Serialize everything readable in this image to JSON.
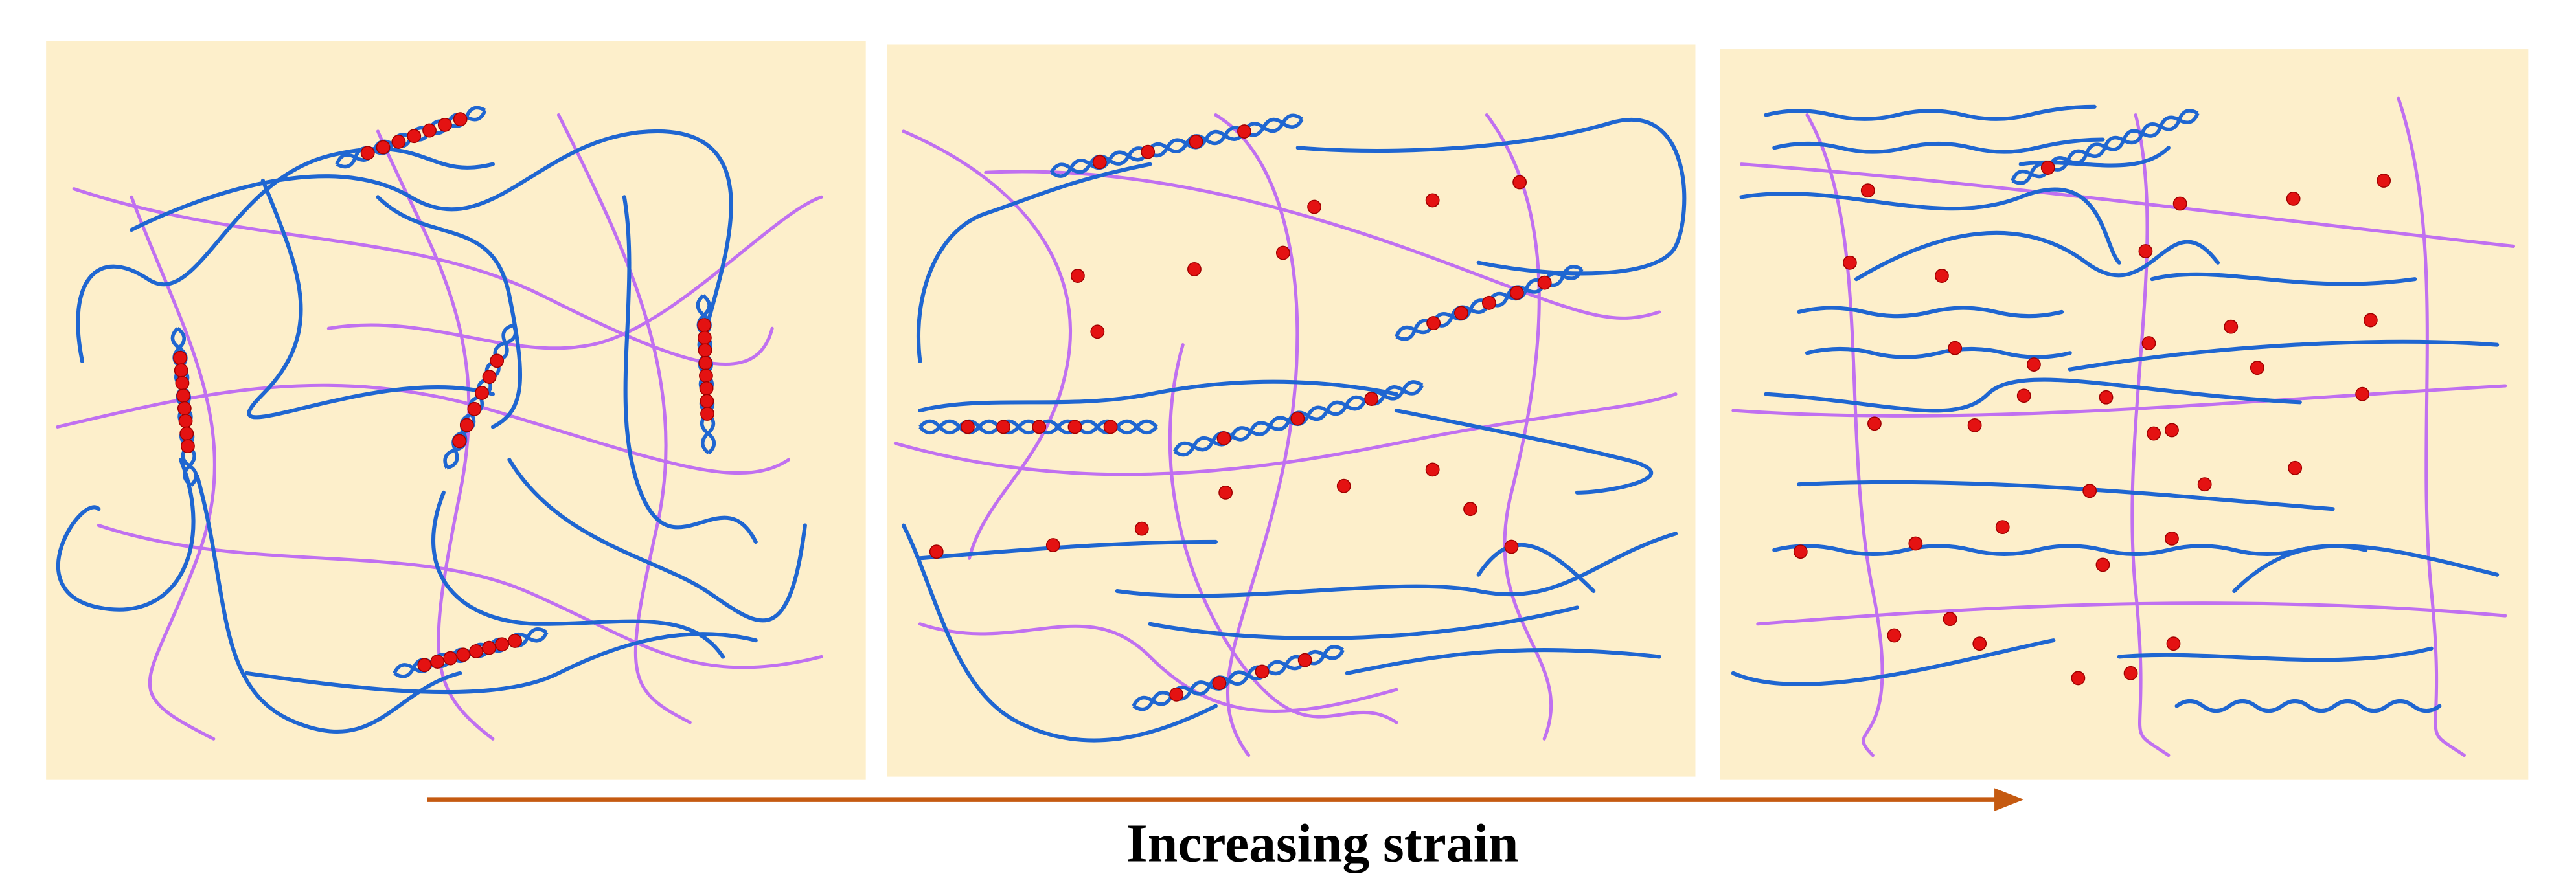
{
  "caption": "Increasing strain"
}
